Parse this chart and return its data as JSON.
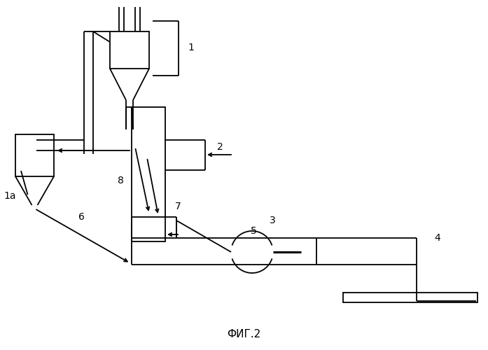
{
  "title": "ФИГ.2",
  "bg_color": "#ffffff",
  "line_color": "#000000",
  "line_width": 1.5,
  "figsize": [
    6.97,
    5.0
  ],
  "dpi": 100
}
